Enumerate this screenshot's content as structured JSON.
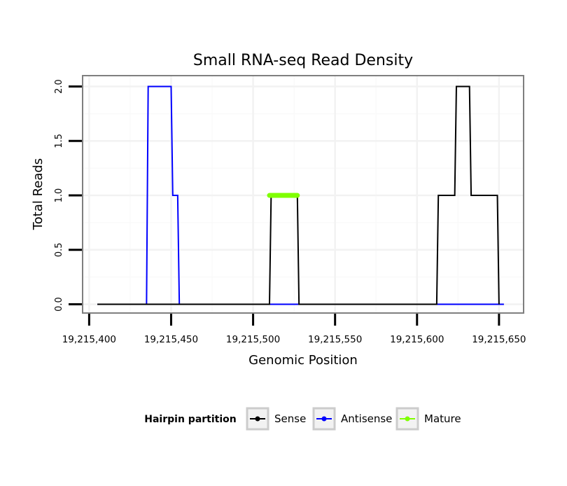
{
  "chart_data": {
    "type": "line",
    "title": "Small RNA-seq Read Density",
    "xlabel": "Genomic Position",
    "ylabel": "Total Reads",
    "xlim": [
      19215396,
      19215665
    ],
    "ylim": [
      -0.08,
      2.1
    ],
    "x_ticks": [
      19215400,
      19215450,
      19215500,
      19215550,
      19215600,
      19215650
    ],
    "x_tick_labels": [
      "19,215,400",
      "19,215,450",
      "19,215,500",
      "19,215,550",
      "19,215,600",
      "19,215,650"
    ],
    "y_ticks": [
      0.0,
      0.5,
      1.0,
      1.5,
      2.0
    ],
    "y_tick_labels": [
      "0.0",
      "0.5",
      "1.0",
      "1.5",
      "2.0"
    ],
    "grid": true,
    "legend": {
      "title": "Hairpin partition",
      "placement": "bottom",
      "entries": [
        "Sense",
        "Antisense",
        "Mature"
      ]
    },
    "series": [
      {
        "name": "Antisense",
        "color": "#0000ff",
        "points": [
          [
            19215405,
            0
          ],
          [
            19215435,
            0
          ],
          [
            19215436,
            2
          ],
          [
            19215450,
            2
          ],
          [
            19215451,
            1
          ],
          [
            19215454,
            1
          ],
          [
            19215455,
            0
          ],
          [
            19215653,
            0
          ]
        ]
      },
      {
        "name": "Sense",
        "color": "#000000",
        "points": [
          [
            19215405,
            0
          ],
          [
            19215510,
            0
          ],
          [
            19215511,
            1
          ],
          [
            19215527,
            1
          ],
          [
            19215528,
            0
          ],
          [
            19215612,
            0
          ],
          [
            19215613,
            1
          ],
          [
            19215623,
            1
          ],
          [
            19215624,
            2
          ],
          [
            19215632,
            2
          ],
          [
            19215633,
            1
          ],
          [
            19215649,
            1
          ],
          [
            19215650,
            0
          ]
        ]
      },
      {
        "name": "Mature",
        "color": "#7fff00",
        "points": [
          [
            19215510,
            1
          ],
          [
            19215527,
            1
          ]
        ]
      }
    ]
  }
}
